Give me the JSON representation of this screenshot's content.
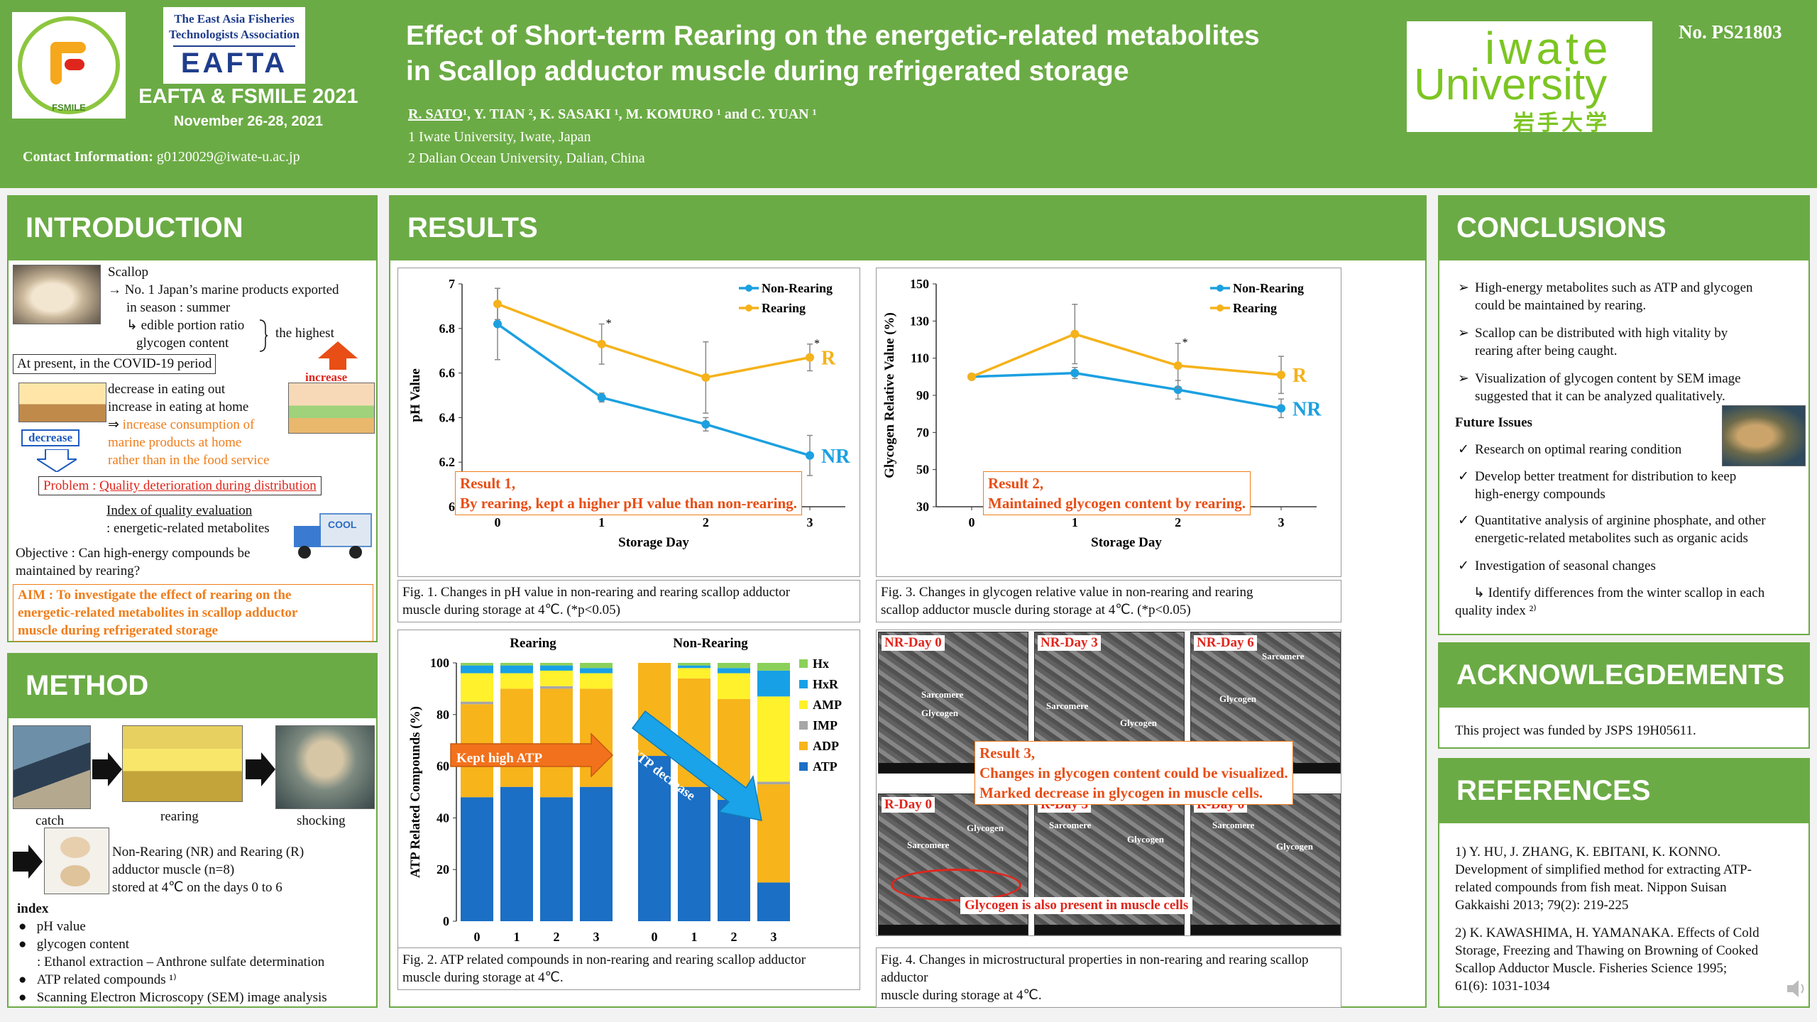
{
  "header": {
    "eafta_small_1": "The East Asia Fisheries",
    "eafta_small_2": "Technologists Association",
    "eafta_big": "EAFTA",
    "fsmile_ring": "FSMILE",
    "conference": "EAFTA & FSMILE 2021",
    "date": "November 26-28, 2021",
    "contact_label": "Contact Information:",
    "contact_email": "g0120029@iwate-u.ac.jp",
    "title_line1": "Effect of Short-term Rearing on the energetic-related metabolites",
    "title_line2": "in Scallop adductor muscle during refrigerated storage",
    "author_first": "R. SATO",
    "authors_rest": "¹, Y. TIAN ², K. SASAKI ¹, M. KOMURO ¹ and C. YUAN ¹",
    "affil1": "1 Iwate University, Iwate, Japan",
    "affil2": "2 Dalian Ocean University, Dalian, China",
    "uni_line1": "iwate",
    "uni_line2": "University",
    "uni_jp": "岩手大学",
    "poster_no": "No. PS21803"
  },
  "intro": {
    "heading": "INTRODUCTION",
    "scallop": "Scallop",
    "fact1": "→ No. 1 Japan’s marine products exported",
    "fact2": "in season : summer",
    "fact3": "↳ edible portion ratio",
    "fact4": "glycogen content",
    "highest": "the highest",
    "covid": "At present, in the COVID-19 period",
    "increase": "increase",
    "decrease": "decrease",
    "c1": "decrease in eating out",
    "c2": "increase in eating at home",
    "c3a": "⇒ ",
    "c3b": "increase consumption of",
    "c4": "marine products at home",
    "c5": "rather than in the food service",
    "problem_label": "Problem : ",
    "problem_text": "Quality deterioration during distribution",
    "index_line1": "Index of quality evaluation",
    "index_line2": ": energetic-related metabolites",
    "cool": "COOL",
    "objective1": "Objective : Can high-energy compounds be",
    "objective2": "maintained by rearing?",
    "aim1": "AIM : To investigate the effect of rearing on the",
    "aim2": "energetic-related metabolites in scallop adductor",
    "aim3": "muscle during refrigerated storage"
  },
  "method": {
    "heading": "METHOD",
    "catch": "catch",
    "rearing": "rearing",
    "shocking": "shocking",
    "sample1": "Non-Rearing (NR) and Rearing (R)",
    "sample2": "adductor muscle (n=8)",
    "sample3": "stored at 4℃ on the days 0 to 6",
    "index_head": "index",
    "i1": "pH value",
    "i2": "glycogen content",
    "i2b": ": Ethanol extraction – Anthrone sulfate determination",
    "i3": "ATP related compounds ¹⁾",
    "i4": "Scanning Electron Microscopy (SEM) image analysis"
  },
  "results": {
    "heading": "RESULTS",
    "fig1_caption1": "Fig. 1. Changes in pH value in non-rearing and rearing scallop adductor",
    "fig1_caption2": "muscle during storage at 4℃. (*p<0.05)",
    "fig2_caption1": "Fig. 2. ATP related compounds in non-rearing and rearing scallop adductor",
    "fig2_caption2": "muscle during storage at 4℃.",
    "fig3_caption1": "Fig. 3. Changes in glycogen relative value in non-rearing and rearing",
    "fig3_caption2": "scallop adductor muscle during storage at 4℃. (*p<0.05)",
    "fig4_caption1": "Fig. 4. Changes in microstructural properties in non-rearing and rearing scallop adductor",
    "fig4_caption2": "muscle during storage at 4℃.",
    "result1_a": "Result 1,",
    "result1_b": "By rearing, kept a higher pH value than non-rearing.",
    "result2_a": "Result 2,",
    "result2_b": "Maintained glycogen content by rearing.",
    "result3_a": "Result 3,",
    "result3_b": "Changes in glycogen content could be visualized.",
    "result3_c": "Marked decrease in glycogen in muscle cells.",
    "kept_high": "Kept high ATP",
    "atp_decrease": "ATP decrease",
    "sem_panels": [
      "NR-Day 0",
      "NR-Day 3",
      "NR-Day 6",
      "R-Day 0",
      "R-Day 3",
      "R-Day 6"
    ],
    "sem_glycogen": "Glycogen",
    "sem_sarcomere": "Sarcomere",
    "sem_note": "Glycogen is also present in muscle cells"
  },
  "conclusions": {
    "heading": "CONCLUSIONS",
    "c1a": " High-energy metabolites such as ATP and glycogen",
    "c1b": "could be maintained by rearing.",
    "c2a": "Scallop can be distributed with high vitality by",
    "c2b": "rearing after being caught.",
    "c3a": "Visualization of glycogen content by SEM image",
    "c3b": "suggested that it can be analyzed qualitatively.",
    "future": "Future Issues",
    "f1": "Research on optimal rearing condition",
    "f2a": "Develop better treatment for distribution to keep",
    "f2b": "high-energy compounds",
    "f3a": "Quantitative analysis of arginine phosphate, and other",
    "f3b": "energetic-related metabolites such as organic acids",
    "f4": "Investigation of seasonal changes",
    "f5a": "↳ Identify differences from the winter scallop in each",
    "f5b": "quality index ²⁾"
  },
  "ack": {
    "heading": "ACKNOWLEGDEMENTS",
    "text": "This project was funded by JSPS 19H05611."
  },
  "refs": {
    "heading": "REFERENCES",
    "r1a": " 1) Y. HU, J. ZHANG, K. EBITANI, K. KONNO.",
    "r1b": "Development of simplified method for extracting ATP-",
    "r1c": "related compounds from fish meat. Nippon Suisan",
    "r1d": "Gakkaishi 2013; 79(2): 219-225",
    "r2a": "2) K. KAWASHIMA, H. YAMANAKA. Effects of Cold",
    "r2b": "Storage, Freezing and Thawing on Browning of Cooked",
    "r2c": "Scallop Adductor Muscle. Fisheries Science 1995;",
    "r2d": "61(6): 1031-1034"
  },
  "chart_data": [
    {
      "type": "line",
      "x": [
        0,
        1,
        2,
        3
      ],
      "xlabel": "Storage Day",
      "ylabel": "pH Value",
      "ylim": [
        6,
        7
      ],
      "yticks": [
        6,
        6.2,
        6.4,
        6.6,
        6.8,
        7
      ],
      "legend_position": "top-right",
      "series": [
        {
          "name": "Non-Rearing",
          "end_label": "NR",
          "color": "#1ca0e0",
          "values": [
            6.82,
            6.49,
            6.37,
            6.23
          ],
          "err": [
            0.16,
            0.02,
            0.03,
            0.09
          ]
        },
        {
          "name": "Rearing",
          "end_label": "R",
          "color": "#f5b21b",
          "values": [
            6.91,
            6.73,
            6.58,
            6.67
          ],
          "err": [
            0.07,
            0.09,
            0.16,
            0.06
          ]
        }
      ],
      "significance": [
        "",
        "*",
        "",
        "*"
      ]
    },
    {
      "type": "line",
      "x": [
        0,
        1,
        2,
        3
      ],
      "xlabel": "Storage Day",
      "ylabel": "Glycogen Relative Value (%)",
      "ylim": [
        30,
        150
      ],
      "yticks": [
        30,
        50,
        70,
        90,
        110,
        130,
        150
      ],
      "legend_position": "top-right",
      "series": [
        {
          "name": "Non-Rearing",
          "end_label": "NR",
          "color": "#1ca0e0",
          "values": [
            100,
            102,
            93,
            83
          ],
          "err": [
            0,
            3,
            5,
            5
          ]
        },
        {
          "name": "Rearing",
          "end_label": "R",
          "color": "#f5b21b",
          "values": [
            100,
            123,
            106,
            101
          ],
          "err": [
            0,
            16,
            12,
            10
          ]
        }
      ],
      "significance": [
        "",
        "",
        "*",
        ""
      ]
    },
    {
      "type": "bar",
      "stacked": true,
      "groups": [
        {
          "label": "Rearing",
          "categories": [
            "0",
            "1",
            "2",
            "3"
          ]
        },
        {
          "label": "Non-Rearing",
          "categories": [
            "0",
            "1",
            "2",
            "3"
          ]
        }
      ],
      "ylabel": "ATP Related Compounds (%)",
      "ylim": [
        0,
        100
      ],
      "yticks": [
        0,
        20,
        40,
        60,
        80,
        100
      ],
      "legend_position": "right",
      "series": [
        {
          "name": "ATP",
          "color": "#1b6fc4",
          "values": [
            48,
            52,
            48,
            52,
            64,
            52,
            47,
            15
          ]
        },
        {
          "name": "ADP",
          "color": "#f7b41b",
          "values": [
            36,
            38,
            42,
            38,
            36,
            42,
            39,
            38
          ]
        },
        {
          "name": "IMP",
          "color": "#a6a6a6",
          "values": [
            1,
            0,
            1,
            0,
            0,
            0,
            0,
            1
          ]
        },
        {
          "name": "AMP",
          "color": "#fff12b",
          "values": [
            11,
            6,
            6,
            6,
            0,
            4,
            10,
            33
          ]
        },
        {
          "name": "HxR",
          "color": "#18a0e6",
          "values": [
            3,
            3,
            2,
            2,
            0,
            1,
            2,
            10
          ]
        },
        {
          "name": "Hx",
          "color": "#8bd05a",
          "values": [
            1,
            1,
            1,
            2,
            0,
            1,
            2,
            3
          ]
        }
      ]
    }
  ]
}
